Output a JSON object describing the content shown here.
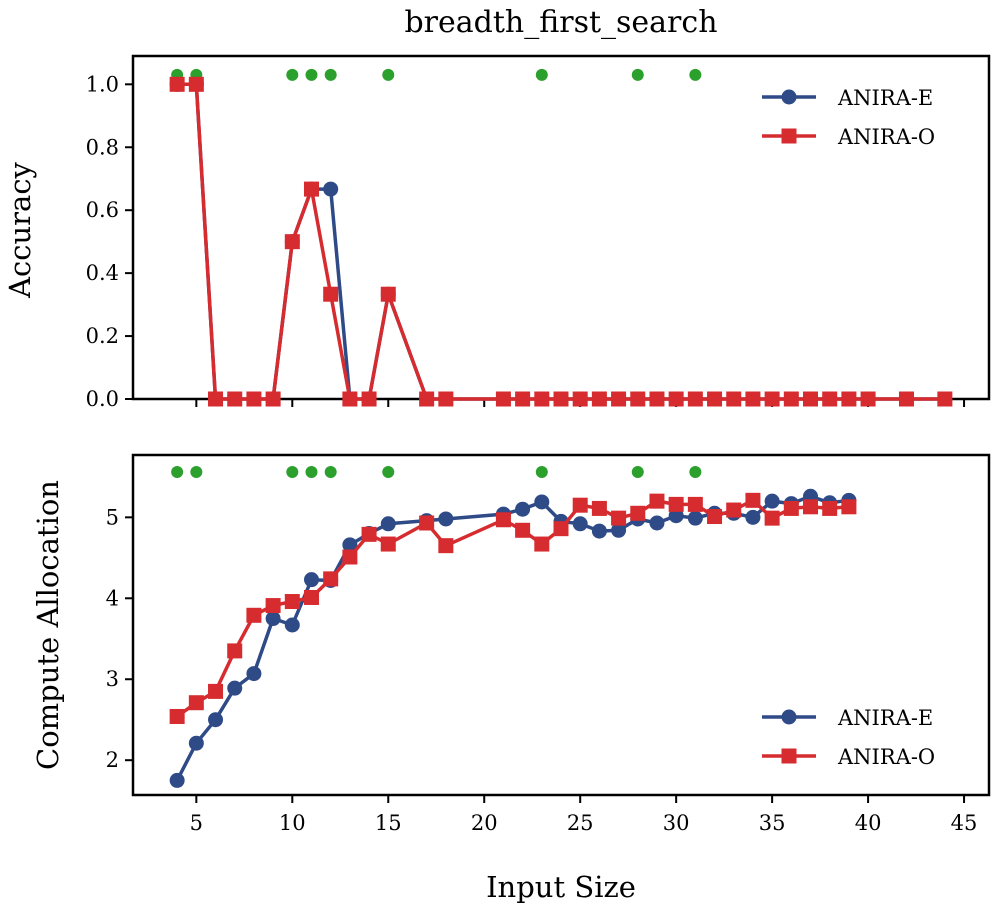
{
  "chart_data": {
    "type": "line",
    "title": "breadth_first_search",
    "xlabel": "Input Size",
    "xlim": [
      1.7,
      46.3
    ],
    "xticks": [
      5,
      10,
      15,
      20,
      25,
      30,
      35,
      40,
      45
    ],
    "xtick_labels": [
      "5",
      "10",
      "15",
      "20",
      "25",
      "30",
      "35",
      "40",
      "45"
    ],
    "colors": {
      "anira_e": "#2e4a87",
      "anira_o": "#d62b2f",
      "marker": "#2ca02c"
    },
    "green_marker_x": [
      4,
      5,
      10,
      11,
      12,
      15,
      23,
      28,
      31
    ],
    "panels": [
      {
        "id": "accuracy",
        "ylabel": "Accuracy",
        "ylim": [
          0.0,
          1.09
        ],
        "yticks": [
          0.0,
          0.2,
          0.4,
          0.6,
          0.8,
          1.0
        ],
        "ytick_labels": [
          "0.0",
          "0.2",
          "0.4",
          "0.6",
          "0.8",
          "1.0"
        ],
        "marker_y": 1.03,
        "legend_position": "top-right",
        "series": [
          {
            "name": "ANIRA-E",
            "color_key": "anira_e",
            "marker": "circle",
            "x": [
              4,
              5,
              6,
              7,
              8,
              9,
              10,
              11,
              12,
              13,
              14,
              15,
              17,
              18,
              21,
              22,
              23,
              24,
              25,
              26,
              27,
              28,
              29,
              30,
              31,
              32,
              33,
              34,
              35,
              36,
              37,
              38,
              39,
              40,
              42,
              44
            ],
            "y": [
              1.0,
              1.0,
              0,
              0,
              0,
              0,
              0.5,
              0.667,
              0.667,
              0,
              0,
              0.333,
              0,
              0,
              0,
              0,
              0,
              0,
              0,
              0,
              0,
              0,
              0,
              0,
              0,
              0,
              0,
              0,
              0,
              0,
              0,
              0,
              0,
              0,
              0,
              0
            ]
          },
          {
            "name": "ANIRA-O",
            "color_key": "anira_o",
            "marker": "square",
            "x": [
              4,
              5,
              6,
              7,
              8,
              9,
              10,
              11,
              12,
              13,
              14,
              15,
              17,
              18,
              21,
              22,
              23,
              24,
              25,
              26,
              27,
              28,
              29,
              30,
              31,
              32,
              33,
              34,
              35,
              36,
              37,
              38,
              39,
              40,
              42,
              44
            ],
            "y": [
              1.0,
              1.0,
              0,
              0,
              0,
              0,
              0.5,
              0.667,
              0.333,
              0,
              0,
              0.333,
              0,
              0,
              0,
              0,
              0,
              0,
              0,
              0,
              0,
              0,
              0,
              0,
              0,
              0,
              0,
              0,
              0,
              0,
              0,
              0,
              0,
              0,
              0,
              0
            ]
          }
        ]
      },
      {
        "id": "compute",
        "ylabel": "Compute Allocation",
        "ylim": [
          1.57,
          5.77
        ],
        "yticks": [
          2,
          3,
          4,
          5
        ],
        "ytick_labels": [
          "2",
          "3",
          "4",
          "5"
        ],
        "marker_y": 5.56,
        "legend_position": "bottom-right",
        "series": [
          {
            "name": "ANIRA-E",
            "color_key": "anira_e",
            "marker": "circle",
            "x": [
              4,
              5,
              6,
              7,
              8,
              9,
              10,
              11,
              12,
              13,
              14,
              15,
              17,
              18,
              21,
              22,
              23,
              24,
              25,
              26,
              27,
              28,
              29,
              30,
              31,
              32,
              33,
              34,
              35,
              36,
              37,
              38,
              39
            ],
            "y": [
              1.75,
              2.21,
              2.5,
              2.89,
              3.07,
              3.75,
              3.67,
              4.23,
              4.22,
              4.66,
              4.8,
              4.92,
              4.96,
              4.98,
              5.04,
              5.1,
              5.19,
              4.95,
              4.92,
              4.83,
              4.84,
              4.98,
              4.93,
              5.02,
              4.99,
              5.05,
              5.05,
              5.0,
              5.2,
              5.17,
              5.26,
              5.18,
              5.21
            ]
          },
          {
            "name": "ANIRA-O",
            "color_key": "anira_o",
            "marker": "square",
            "x": [
              4,
              5,
              6,
              7,
              8,
              9,
              10,
              11,
              12,
              13,
              14,
              15,
              17,
              18,
              21,
              22,
              23,
              24,
              25,
              26,
              27,
              28,
              29,
              30,
              31,
              32,
              33,
              34,
              35,
              36,
              37,
              38,
              39
            ],
            "y": [
              2.54,
              2.71,
              2.85,
              3.35,
              3.79,
              3.91,
              3.96,
              4.01,
              4.24,
              4.51,
              4.79,
              4.67,
              4.93,
              4.65,
              4.97,
              4.84,
              4.67,
              4.86,
              5.15,
              5.11,
              4.99,
              5.05,
              5.2,
              5.16,
              5.16,
              5.01,
              5.09,
              5.21,
              4.99,
              5.11,
              5.13,
              5.11,
              5.13
            ]
          }
        ]
      }
    ]
  }
}
